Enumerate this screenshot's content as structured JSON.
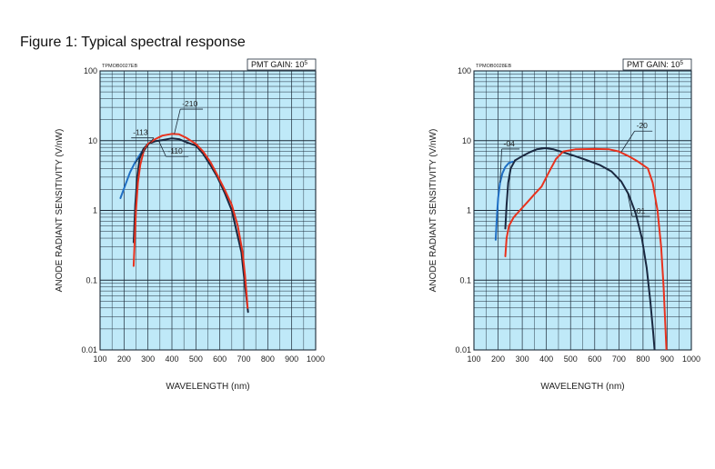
{
  "figure_title": "Figure 1: Typical spectral response",
  "chart_data": [
    {
      "type": "line",
      "code": "TPMOB0027EB",
      "gain_text": "PMT GAIN: 10",
      "gain_exp": "5",
      "xlabel": "WAVELENGTH (nm)",
      "ylabel": "ANODE RADIANT SENSITIVITY (V/nW)",
      "xlim": [
        100,
        1000
      ],
      "ylim": [
        0.01,
        100
      ],
      "y_scale": "log",
      "grid": true,
      "xticks": [
        "100",
        "200",
        "300",
        "400",
        "500",
        "600",
        "700",
        "800",
        "900",
        "1000"
      ],
      "yticks": [
        {
          "value": 100,
          "label": "100"
        },
        {
          "value": 10,
          "label": "10"
        },
        {
          "value": 1,
          "label": "1"
        },
        {
          "value": 0.1,
          "label": "0.1"
        },
        {
          "value": 0.01,
          "label": "0.01"
        }
      ],
      "series": [
        {
          "name": "-113",
          "color": "#1f6fc4",
          "points": [
            [
              185,
              1.5
            ],
            [
              205,
              2.3
            ],
            [
              225,
              3.5
            ],
            [
              245,
              4.8
            ],
            [
              260,
              5.8
            ],
            [
              275,
              7.0
            ]
          ]
        },
        {
          "name": "-110",
          "color": "#1a2840",
          "points": [
            [
              240,
              0.35
            ],
            [
              247,
              1.2
            ],
            [
              255,
              3.0
            ],
            [
              265,
              5.5
            ],
            [
              280,
              7.5
            ],
            [
              300,
              9.0
            ],
            [
              330,
              9.8
            ],
            [
              360,
              10.2
            ],
            [
              400,
              10.8
            ],
            [
              430,
              10.5
            ],
            [
              460,
              9.5
            ],
            [
              500,
              8.5
            ],
            [
              530,
              6.5
            ],
            [
              560,
              4.5
            ],
            [
              590,
              3.0
            ],
            [
              620,
              1.8
            ],
            [
              650,
              1.0
            ],
            [
              670,
              0.5
            ],
            [
              690,
              0.25
            ],
            [
              700,
              0.12
            ],
            [
              710,
              0.06
            ],
            [
              718,
              0.035
            ]
          ]
        },
        {
          "name": "-210",
          "color": "#e8321e",
          "points": [
            [
              240,
              0.16
            ],
            [
              245,
              0.4
            ],
            [
              250,
              1.0
            ],
            [
              258,
              2.5
            ],
            [
              268,
              4.5
            ],
            [
              282,
              7.0
            ],
            [
              300,
              9.0
            ],
            [
              330,
              10.5
            ],
            [
              360,
              11.8
            ],
            [
              400,
              12.5
            ],
            [
              430,
              12.3
            ],
            [
              460,
              11.0
            ],
            [
              500,
              9.0
            ],
            [
              530,
              7.0
            ],
            [
              560,
              5.0
            ],
            [
              590,
              3.2
            ],
            [
              620,
              2.0
            ],
            [
              650,
              1.2
            ],
            [
              675,
              0.6
            ],
            [
              695,
              0.25
            ],
            [
              705,
              0.12
            ],
            [
              712,
              0.06
            ],
            [
              716,
              0.04
            ]
          ]
        }
      ],
      "annotations": [
        {
          "text": "-113",
          "x": 230,
          "y": 12.0,
          "target": [
            247,
            4.8
          ]
        },
        {
          "text": "-110",
          "x": 375,
          "y": 6.5,
          "target": [
            345,
            9.9
          ]
        },
        {
          "text": "-210",
          "x": 435,
          "y": 31.0,
          "target": [
            410,
            12.5
          ]
        }
      ]
    },
    {
      "type": "line",
      "code": "TPMOB0028EB",
      "gain_text": "PMT GAIN: 10",
      "gain_exp": "5",
      "xlabel": "WAVELENGTH (nm)",
      "ylabel": "ANODE RADIANT SENSITIVITY (V/nW)",
      "xlim": [
        100,
        1000
      ],
      "ylim": [
        0.01,
        100
      ],
      "y_scale": "log",
      "grid": true,
      "xticks": [
        "100",
        "200",
        "300",
        "400",
        "500",
        "600",
        "700",
        "800",
        "900",
        "1000"
      ],
      "yticks": [
        {
          "value": 100,
          "label": "100"
        },
        {
          "value": 10,
          "label": "10"
        },
        {
          "value": 1,
          "label": "1"
        },
        {
          "value": 0.1,
          "label": "0.1"
        },
        {
          "value": 0.01,
          "label": "0.01"
        }
      ],
      "series": [
        {
          "name": "-04",
          "color": "#1f6fc4",
          "points": [
            [
              190,
              0.38
            ],
            [
              195,
              0.8
            ],
            [
              200,
              1.5
            ],
            [
              208,
              2.5
            ],
            [
              218,
              3.4
            ],
            [
              230,
              4.2
            ],
            [
              245,
              4.8
            ],
            [
              260,
              5.0
            ]
          ]
        },
        {
          "name": "-01",
          "color": "#1a2840",
          "points": [
            [
              230,
              0.55
            ],
            [
              235,
              1.2
            ],
            [
              242,
              2.5
            ],
            [
              252,
              4.0
            ],
            [
              270,
              5.2
            ],
            [
              300,
              6.0
            ],
            [
              330,
              6.8
            ],
            [
              360,
              7.5
            ],
            [
              395,
              7.8
            ],
            [
              430,
              7.5
            ],
            [
              470,
              6.8
            ],
            [
              520,
              6.0
            ],
            [
              570,
              5.2
            ],
            [
              620,
              4.5
            ],
            [
              670,
              3.6
            ],
            [
              710,
              2.6
            ],
            [
              740,
              1.7
            ],
            [
              770,
              0.9
            ],
            [
              795,
              0.4
            ],
            [
              815,
              0.15
            ],
            [
              830,
              0.05
            ],
            [
              842,
              0.018
            ],
            [
              848,
              0.01
            ]
          ]
        },
        {
          "name": "-20",
          "color": "#e8321e",
          "points": [
            [
              230,
              0.22
            ],
            [
              235,
              0.4
            ],
            [
              245,
              0.6
            ],
            [
              265,
              0.8
            ],
            [
              290,
              1.0
            ],
            [
              320,
              1.3
            ],
            [
              350,
              1.7
            ],
            [
              380,
              2.2
            ],
            [
              410,
              3.5
            ],
            [
              440,
              5.5
            ],
            [
              470,
              7.0
            ],
            [
              520,
              7.5
            ],
            [
              600,
              7.6
            ],
            [
              660,
              7.5
            ],
            [
              700,
              7.0
            ],
            [
              740,
              6.0
            ],
            [
              780,
              5.0
            ],
            [
              820,
              4.0
            ],
            [
              840,
              2.5
            ],
            [
              860,
              1.0
            ],
            [
              875,
              0.3
            ],
            [
              885,
              0.08
            ],
            [
              893,
              0.02
            ],
            [
              897,
              0.01
            ]
          ]
        }
      ],
      "annotations": [
        {
          "text": "-04",
          "x": 215,
          "y": 8.3,
          "target": [
            208,
            2.5
          ]
        },
        {
          "text": "-01",
          "x": 755,
          "y": 0.9,
          "target": [
            735,
            1.85
          ]
        },
        {
          "text": "-20",
          "x": 765,
          "y": 15.0,
          "target": [
            710,
            6.9
          ]
        }
      ]
    }
  ]
}
